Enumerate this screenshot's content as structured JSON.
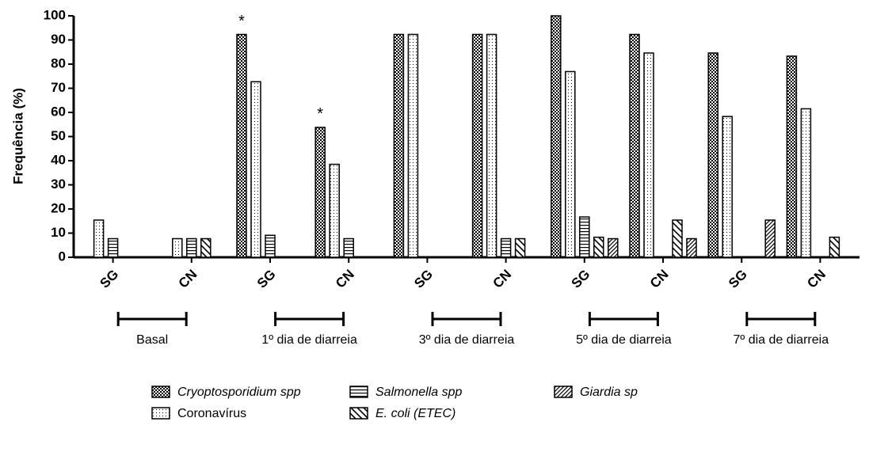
{
  "chart_data": {
    "type": "bar",
    "y_label": "Frequência (%)",
    "categories": [
      "SG",
      "CN",
      "SG",
      "CN",
      "SG",
      "CN",
      "SG",
      "CN",
      "SG",
      "CN"
    ],
    "groups": [
      "Basal",
      "1º dia de diarreia",
      "3º dia de diarreia",
      "5º dia de diarreia",
      "7º dia de diarreia"
    ],
    "annotations": [
      "*",
      "*"
    ],
    "series": [
      {
        "name": "Cryoptosporidium spp",
        "color": "#000000",
        "values": [
          0,
          0,
          92.3,
          53.8,
          92.3,
          92.3,
          100,
          92.3,
          84.6,
          83.3
        ]
      },
      {
        "name": "Coronavírus",
        "color": "#000000",
        "values": [
          15.4,
          7.7,
          72.7,
          38.5,
          92.3,
          92.3,
          76.9,
          84.6,
          58.3,
          61.5
        ]
      },
      {
        "name": "Salmonella spp",
        "color": "#000000",
        "values": [
          7.7,
          7.7,
          9.1,
          7.7,
          0,
          7.7,
          16.7,
          0,
          0,
          0
        ]
      },
      {
        "name": "E. coli (ETEC)",
        "color": "#000000",
        "values": [
          0,
          7.7,
          0,
          0,
          0,
          7.7,
          8.3,
          15.4,
          0,
          8.3
        ]
      },
      {
        "name": "Giardia sp",
        "color": "#000000",
        "values": [
          0,
          0,
          0,
          0,
          0,
          0,
          7.7,
          7.7,
          15.4,
          0
        ]
      }
    ],
    "ylim": [
      0,
      100
    ],
    "yticks": [
      0,
      10,
      20,
      30,
      40,
      50,
      60,
      70,
      80,
      90,
      100
    ],
    "grid": false
  }
}
